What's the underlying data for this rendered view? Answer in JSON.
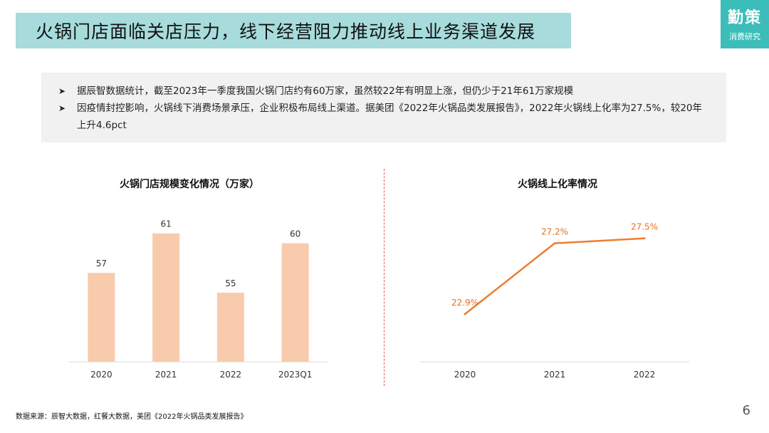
{
  "header": {
    "title": "火锅门店面临关店压力，线下经营阻力推动线上业务渠道发展",
    "logo_line1": "勤策",
    "logo_line2": "消费研究"
  },
  "summary": {
    "bullets": [
      "据辰智数据统计，截至2023年一季度我国火锅门店约有60万家，虽然较22年有明显上涨，但仍少于21年61万家规模",
      "因疫情封控影响，火锅线下消费场景承压，企业积极布局线上渠道。据美团《2022年火锅品类发展报告》，2022年火锅线上化率为27.5%，较20年上升4.6pct"
    ]
  },
  "chart_data": [
    {
      "type": "bar",
      "title": "火锅门店规模变化情况（万家）",
      "categories": [
        "2020",
        "2021",
        "2022",
        "2023Q1"
      ],
      "values": [
        57,
        61,
        55,
        60
      ],
      "value_labels": [
        "57",
        "61",
        "55",
        "60"
      ],
      "ylim": [
        48,
        63
      ],
      "color": "#f8cbad"
    },
    {
      "type": "line",
      "title": "火锅线上化率情况",
      "categories": [
        "2020",
        "2021",
        "2022"
      ],
      "values": [
        22.9,
        27.2,
        27.5
      ],
      "value_labels": [
        "22.9%",
        "27.2%",
        "27.5%"
      ],
      "ylim": [
        20,
        29
      ],
      "color": "#ed7d31"
    }
  ],
  "footer": {
    "source": "数据来源：辰智大数据，红餐大数据，美团《2022年火锅品类发展报告》",
    "page": "6"
  }
}
